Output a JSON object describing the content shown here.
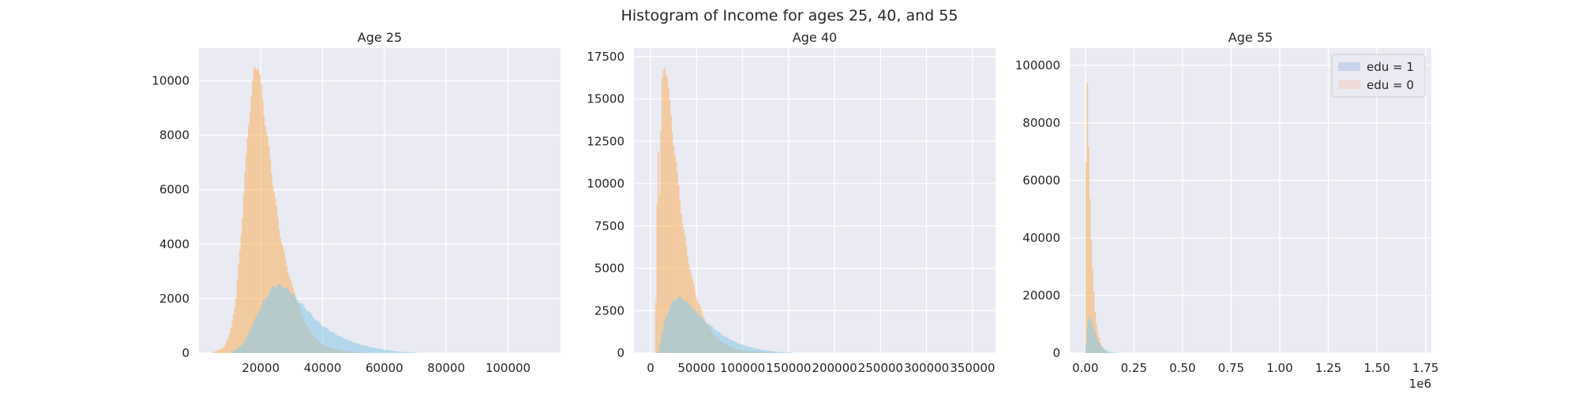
{
  "figure": {
    "suptitle": "Histogram of Income for ages 25, 40, and 55"
  },
  "chart_data": [
    {
      "type": "bar",
      "title": "Age 25",
      "xlabel": "",
      "ylabel": "",
      "xlim": [
        0,
        117000
      ],
      "ylim": [
        0,
        11200
      ],
      "xticks": [
        "20000",
        "40000",
        "60000",
        "80000",
        "100000"
      ],
      "xtick_values": [
        20000,
        40000,
        60000,
        80000,
        100000
      ],
      "yticks": [
        "0",
        "2000",
        "4000",
        "6000",
        "8000",
        "10000"
      ],
      "ytick_values": [
        0,
        2000,
        4000,
        6000,
        8000,
        10000
      ],
      "grid": true,
      "series": [
        {
          "name": "edu = 0",
          "color": "#f5b469",
          "x": [
            4000,
            8000,
            10000,
            12000,
            14000,
            16000,
            18000,
            19000,
            20000,
            22000,
            24000,
            26000,
            28000,
            30000,
            32000,
            34000,
            36000,
            38000,
            40000,
            44000,
            48000,
            52000,
            56000
          ],
          "values": [
            0,
            200,
            700,
            2000,
            5000,
            8500,
            10500,
            10700,
            9800,
            8000,
            6200,
            4500,
            3400,
            2500,
            1800,
            1200,
            800,
            500,
            300,
            150,
            60,
            20,
            0
          ]
        },
        {
          "name": "edu = 1",
          "color": "#8ecae8",
          "x": [
            10000,
            14000,
            16000,
            18000,
            20000,
            22000,
            24000,
            26000,
            28000,
            30000,
            32000,
            34000,
            36000,
            38000,
            40000,
            44000,
            48000,
            52000,
            56000,
            60000,
            64000,
            68000,
            72000
          ],
          "values": [
            0,
            300,
            700,
            1200,
            1700,
            2100,
            2450,
            2500,
            2400,
            2200,
            1950,
            1700,
            1450,
            1200,
            1000,
            700,
            480,
            320,
            200,
            120,
            60,
            25,
            0
          ]
        }
      ]
    },
    {
      "type": "bar",
      "title": "Age 40",
      "xlabel": "",
      "ylabel": "",
      "xlim": [
        -18000,
        375000
      ],
      "ylim": [
        0,
        18000
      ],
      "xticks": [
        "0",
        "50000",
        "100000",
        "150000",
        "200000",
        "250000",
        "300000",
        "350000"
      ],
      "xtick_values": [
        0,
        50000,
        100000,
        150000,
        200000,
        250000,
        300000,
        350000
      ],
      "yticks": [
        "0",
        "2500",
        "5000",
        "7500",
        "10000",
        "12500",
        "15000",
        "17500"
      ],
      "ytick_values": [
        0,
        2500,
        5000,
        7500,
        10000,
        12500,
        15000,
        17500
      ],
      "grid": true,
      "series": [
        {
          "name": "edu = 0",
          "color": "#f5b469",
          "x": [
            5000,
            8000,
            10000,
            12000,
            15000,
            18000,
            20000,
            25000,
            30000,
            35000,
            40000,
            45000,
            50000,
            55000,
            60000,
            70000,
            80000,
            90000,
            100000,
            120000,
            140000
          ],
          "values": [
            0,
            13000,
            9000,
            15500,
            17200,
            16500,
            15000,
            12500,
            10000,
            7600,
            5800,
            4400,
            3300,
            2500,
            1800,
            1000,
            550,
            300,
            150,
            40,
            0
          ]
        },
        {
          "name": "edu = 1",
          "color": "#8ecae8",
          "x": [
            8000,
            12000,
            15000,
            20000,
            25000,
            30000,
            35000,
            40000,
            45000,
            50000,
            60000,
            70000,
            80000,
            90000,
            100000,
            110000,
            120000,
            130000,
            140000,
            160000
          ],
          "values": [
            0,
            1000,
            1800,
            2600,
            3100,
            3300,
            3200,
            2950,
            2700,
            2400,
            1850,
            1400,
            1000,
            700,
            480,
            320,
            200,
            120,
            60,
            0
          ]
        }
      ]
    },
    {
      "type": "bar",
      "title": "Age 55",
      "xlabel": "",
      "ylabel": "",
      "offset_text": "1e6",
      "xlim": [
        -0.08,
        1.78
      ],
      "ylim": [
        0,
        106000
      ],
      "xticks": [
        "0.00",
        "0.25",
        "0.50",
        "0.75",
        "1.00",
        "1.25",
        "1.50",
        "1.75"
      ],
      "xtick_values": [
        0,
        0.25,
        0.5,
        0.75,
        1.0,
        1.25,
        1.5,
        1.75
      ],
      "yticks": [
        "0",
        "20000",
        "40000",
        "60000",
        "80000",
        "100000"
      ],
      "ytick_values": [
        0,
        20000,
        40000,
        60000,
        80000,
        100000
      ],
      "grid": true,
      "legend": {
        "location": "top-right",
        "entries": [
          "edu = 1",
          "edu = 0"
        ]
      },
      "series": [
        {
          "name": "edu = 0",
          "color": "#f5b469",
          "x": [
            0.0,
            0.005,
            0.01,
            0.015,
            0.02,
            0.03,
            0.04,
            0.05,
            0.06,
            0.08,
            0.1,
            0.12
          ],
          "values": [
            0,
            100000,
            92000,
            75000,
            60000,
            40000,
            25000,
            14000,
            8000,
            3000,
            800,
            0
          ]
        },
        {
          "name": "edu = 1",
          "color": "#8ecae8",
          "x": [
            0.0,
            0.01,
            0.02,
            0.03,
            0.04,
            0.05,
            0.06,
            0.08,
            0.1,
            0.12,
            0.15,
            0.2
          ],
          "values": [
            0,
            9000,
            13000,
            11500,
            9000,
            7000,
            5000,
            2500,
            1200,
            500,
            150,
            0
          ]
        }
      ]
    }
  ]
}
